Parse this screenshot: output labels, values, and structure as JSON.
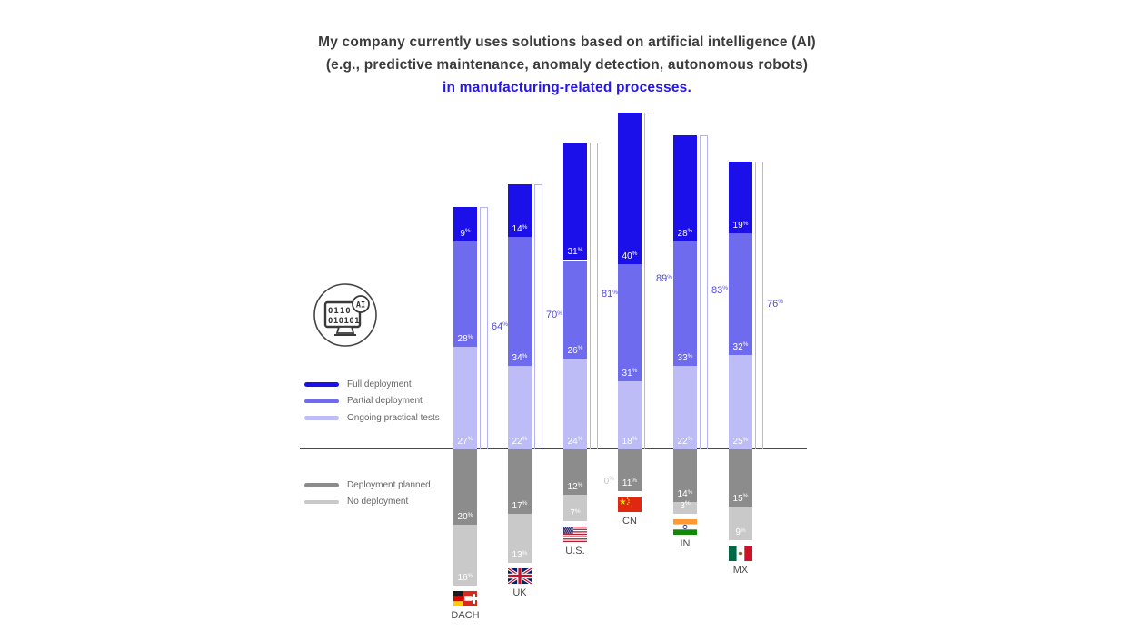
{
  "title": {
    "line1": "My company currently uses solutions based on artificial intelligence (AI)",
    "line2": "(e.g., predictive maintenance, anomaly detection, autonomous robots)",
    "line3": "in manufacturing-related processes."
  },
  "icon": {
    "badge": "AI",
    "screen_line1": "0110",
    "screen_line2": "010101"
  },
  "colors": {
    "full_deployment": "#1c10ea",
    "partial_deployment": "#6e6bee",
    "ongoing_tests": "#bdbcf6",
    "deployment_planned": "#8c8c8c",
    "no_deployment": "#c9c9c9",
    "total_label": "#4f48e2",
    "bracket": "#b5b3f4",
    "title_accent": "#2617e8",
    "title_text": "#3c3c3c",
    "segment_label": "#ffffff",
    "zero_label": "#c6c6c6"
  },
  "chart_data": {
    "type": "bar",
    "stacked": true,
    "orientation": "vertical-diverging",
    "unit": "%",
    "categories": [
      "DACH",
      "UK",
      "U.S.",
      "CN",
      "IN",
      "MX"
    ],
    "series": [
      {
        "name": "Full deployment",
        "position": "above",
        "color_key": "full_deployment",
        "values": [
          9,
          14,
          31,
          40,
          28,
          19
        ]
      },
      {
        "name": "Partial deployment",
        "position": "above",
        "color_key": "partial_deployment",
        "values": [
          28,
          34,
          26,
          31,
          33,
          32
        ]
      },
      {
        "name": "Ongoing practical tests",
        "position": "above",
        "color_key": "ongoing_tests",
        "values": [
          27,
          22,
          24,
          18,
          22,
          25
        ]
      },
      {
        "name": "Deployment planned",
        "position": "below",
        "color_key": "deployment_planned",
        "values": [
          20,
          17,
          12,
          11,
          14,
          15
        ]
      },
      {
        "name": "No deployment",
        "position": "below",
        "color_key": "no_deployment",
        "values": [
          16,
          13,
          7,
          0,
          3,
          9
        ]
      }
    ],
    "totals_above": [
      64,
      70,
      81,
      89,
      83,
      76
    ],
    "flags": [
      "dach",
      "uk",
      "us",
      "cn",
      "in",
      "mx"
    ],
    "legend_position": "left"
  },
  "legend_top": [
    {
      "label": "Full deployment",
      "color_key": "full_deployment"
    },
    {
      "label": "Partial deployment",
      "color_key": "partial_deployment"
    },
    {
      "label": "Ongoing practical tests",
      "color_key": "ongoing_tests"
    }
  ],
  "legend_bottom": [
    {
      "label": "Deployment planned",
      "color_key": "deployment_planned"
    },
    {
      "label": "No deployment",
      "color_key": "no_deployment"
    }
  ]
}
